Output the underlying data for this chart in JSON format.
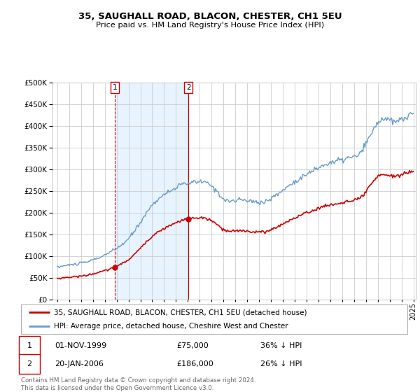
{
  "title": "35, SAUGHALL ROAD, BLACON, CHESTER, CH1 5EU",
  "subtitle": "Price paid vs. HM Land Registry's House Price Index (HPI)",
  "legend_label_red": "35, SAUGHALL ROAD, BLACON, CHESTER, CH1 5EU (detached house)",
  "legend_label_blue": "HPI: Average price, detached house, Cheshire West and Chester",
  "footnote": "Contains HM Land Registry data © Crown copyright and database right 2024.\nThis data is licensed under the Open Government Licence v3.0.",
  "transaction1_date": "01-NOV-1999",
  "transaction1_price": "£75,000",
  "transaction1_hpi": "36% ↓ HPI",
  "transaction1_year": 1999.83,
  "transaction1_value": 75000,
  "transaction2_date": "20-JAN-2006",
  "transaction2_price": "£186,000",
  "transaction2_hpi": "26% ↓ HPI",
  "transaction2_year": 2006.05,
  "transaction2_value": 186000,
  "color_red": "#cc0000",
  "color_blue": "#6699cc",
  "color_shade": "#ddeeff",
  "color_vline1": "#cc0000",
  "color_vline2": "#cc0000",
  "ylim_min": 0,
  "ylim_max": 500000,
  "ytick_step": 50000,
  "background_color": "#ffffff",
  "grid_color": "#cccccc"
}
